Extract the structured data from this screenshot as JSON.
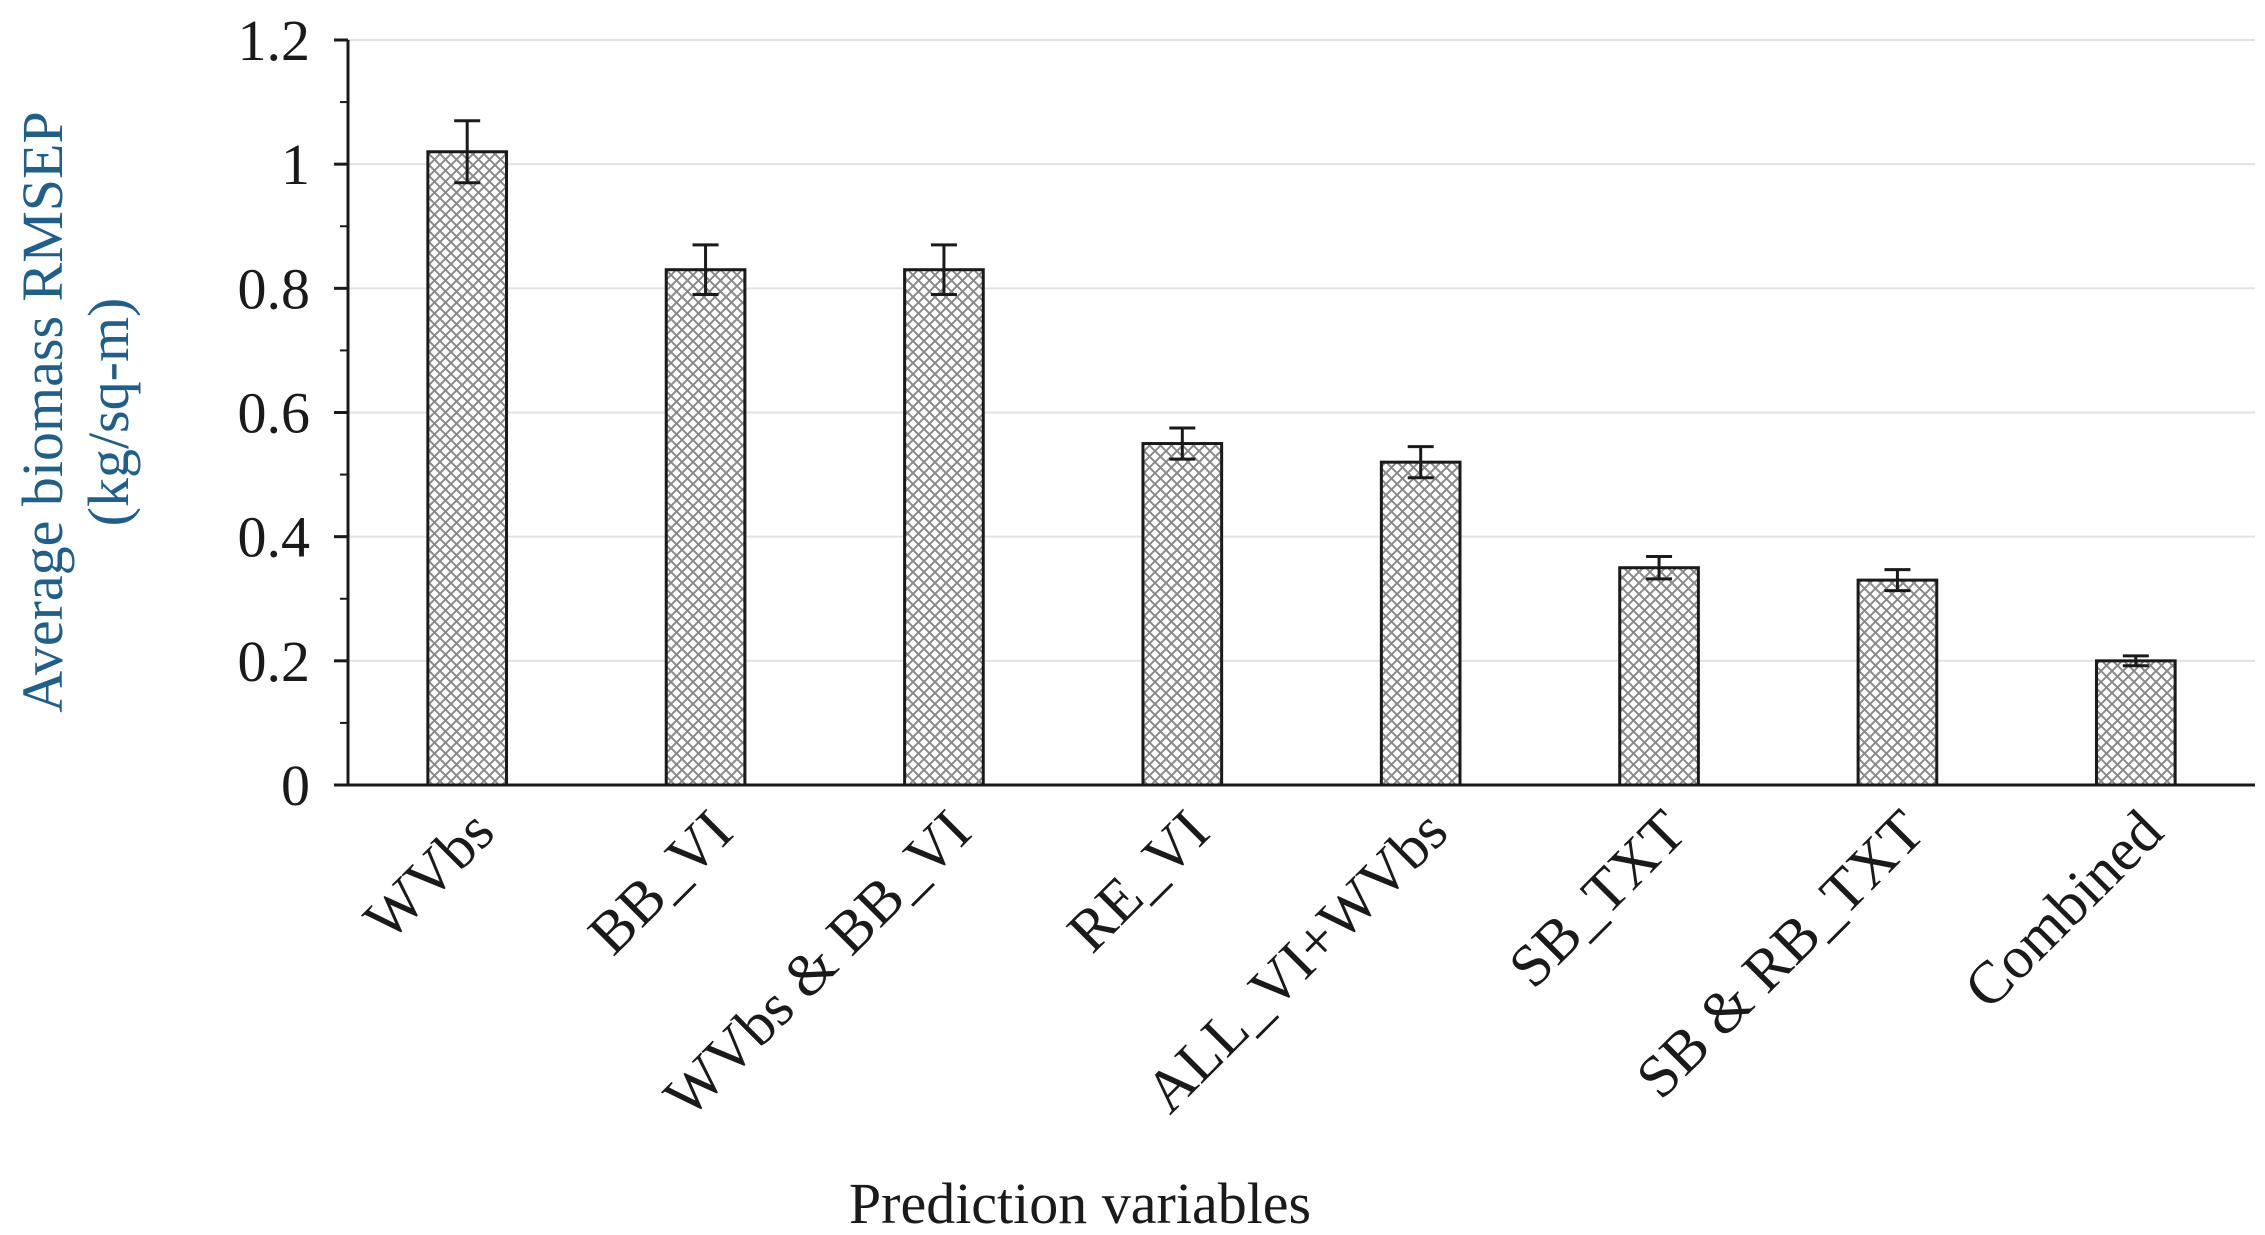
{
  "chart_data": {
    "type": "bar",
    "title": "",
    "xlabel": "Prediction variables",
    "ylabel": [
      "Average biomass RMSEP",
      "(kg/sq-m)"
    ],
    "ylabel_color": "#1f5f8b",
    "categories": [
      "WVbs",
      "BB_VI",
      "WVbs & BB_VI",
      "RE_VI",
      "ALL_VI+WVbs",
      "SB_TXT",
      "SB & RB_TXT",
      "Combined"
    ],
    "values": [
      1.02,
      0.83,
      0.83,
      0.55,
      0.52,
      0.35,
      0.33,
      0.2
    ],
    "error": [
      0.05,
      0.04,
      0.04,
      0.025,
      0.025,
      0.018,
      0.017,
      0.008
    ],
    "ylim": [
      0,
      1.2
    ],
    "yticks": [
      "0",
      "0.2",
      "0.4",
      "0.6",
      "0.8",
      "1",
      "1.2"
    ],
    "grid": true,
    "grid_color": "#e2e2e2",
    "bar_fill": "crosshatch",
    "bar_color": "#9a9a9a",
    "bar_outline": "#1a1a1a"
  }
}
